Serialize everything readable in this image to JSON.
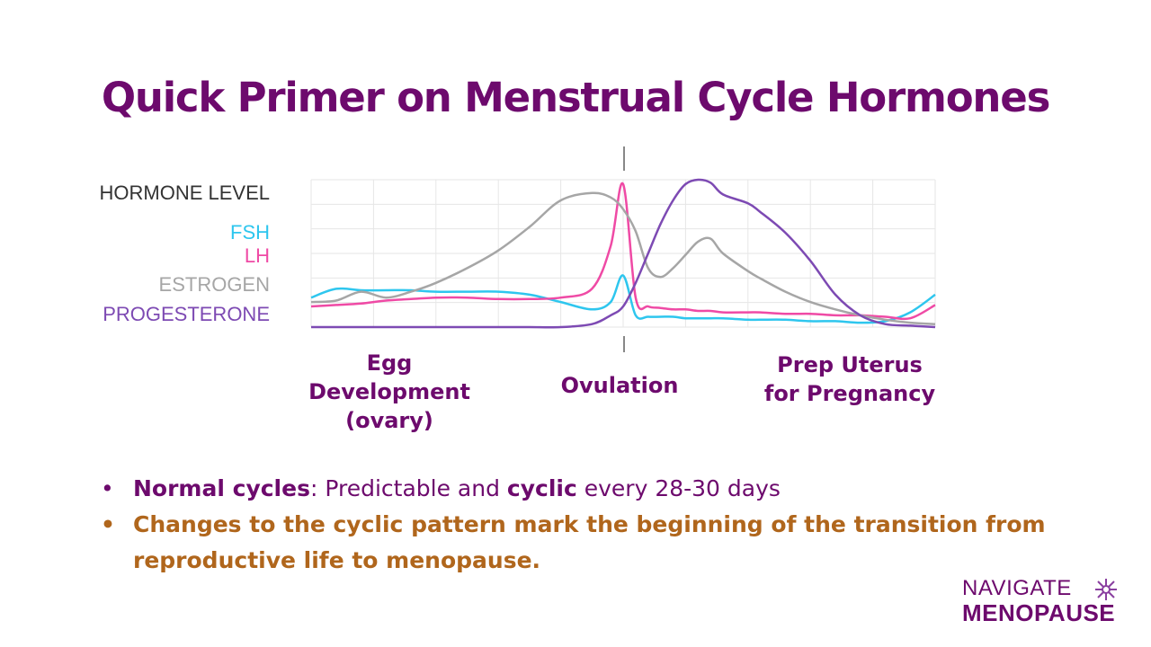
{
  "title": "Quick Primer on Menstrual Cycle Hormones",
  "legend": {
    "heading": "HORMONE LEVEL",
    "items": [
      {
        "label": "FSH",
        "color": "#2ec6ee"
      },
      {
        "label": "LH",
        "color": "#ef4aa5"
      },
      {
        "label": "ESTROGEN",
        "color": "#a6a6a6"
      },
      {
        "label": "PROGESTERONE",
        "color": "#7d4ab3"
      }
    ]
  },
  "phases": {
    "egg": [
      "Egg",
      "Development",
      "(ovary)"
    ],
    "ovulation": "Ovulation",
    "prep": [
      "Prep Uterus",
      "for Pregnancy"
    ]
  },
  "bullets": {
    "b1_bold1": "Normal cycles",
    "b1_text1": ": Predictable and ",
    "b1_bold2": "cyclic",
    "b1_text2": " every 28-30 days",
    "b2": "Changes to the cyclic pattern mark the beginning of the transition from reproductive life to menopause."
  },
  "logo": {
    "line1": "NAVIGATE",
    "line2": "MENOPAUSE"
  },
  "chart_data": {
    "type": "line",
    "x": [
      0,
      0.04,
      0.08,
      0.12,
      0.16,
      0.2,
      0.25,
      0.3,
      0.35,
      0.4,
      0.45,
      0.48,
      0.5,
      0.52,
      0.54,
      0.56,
      0.58,
      0.6,
      0.62,
      0.64,
      0.66,
      0.7,
      0.72,
      0.76,
      0.8,
      0.84,
      0.88,
      0.92,
      0.96,
      1.0
    ],
    "series": [
      {
        "name": "FSH",
        "values": [
          0.2,
          0.26,
          0.25,
          0.25,
          0.25,
          0.24,
          0.24,
          0.24,
          0.22,
          0.17,
          0.12,
          0.17,
          0.35,
          0.08,
          0.07,
          0.07,
          0.07,
          0.06,
          0.06,
          0.06,
          0.06,
          0.05,
          0.05,
          0.05,
          0.04,
          0.04,
          0.03,
          0.04,
          0.1,
          0.22
        ]
      },
      {
        "name": "LH",
        "values": [
          0.14,
          0.15,
          0.16,
          0.18,
          0.19,
          0.2,
          0.2,
          0.19,
          0.19,
          0.2,
          0.26,
          0.55,
          0.97,
          0.2,
          0.14,
          0.13,
          0.12,
          0.12,
          0.11,
          0.11,
          0.1,
          0.1,
          0.1,
          0.09,
          0.09,
          0.08,
          0.08,
          0.07,
          0.06,
          0.15
        ]
      },
      {
        "name": "ESTROGEN",
        "values": [
          0.17,
          0.18,
          0.24,
          0.2,
          0.24,
          0.3,
          0.4,
          0.52,
          0.68,
          0.86,
          0.91,
          0.88,
          0.8,
          0.65,
          0.4,
          0.34,
          0.4,
          0.49,
          0.58,
          0.6,
          0.5,
          0.38,
          0.33,
          0.24,
          0.17,
          0.12,
          0.08,
          0.05,
          0.03,
          0.02
        ]
      },
      {
        "name": "PROGESTERONE",
        "values": [
          0.0,
          0.0,
          0.0,
          0.0,
          0.0,
          0.0,
          0.0,
          0.0,
          0.0,
          0.0,
          0.02,
          0.08,
          0.14,
          0.3,
          0.5,
          0.7,
          0.86,
          0.97,
          1.0,
          0.98,
          0.9,
          0.84,
          0.78,
          0.64,
          0.45,
          0.22,
          0.08,
          0.02,
          0.01,
          0.0
        ]
      }
    ],
    "grid": true,
    "ylim": [
      0,
      1
    ]
  }
}
